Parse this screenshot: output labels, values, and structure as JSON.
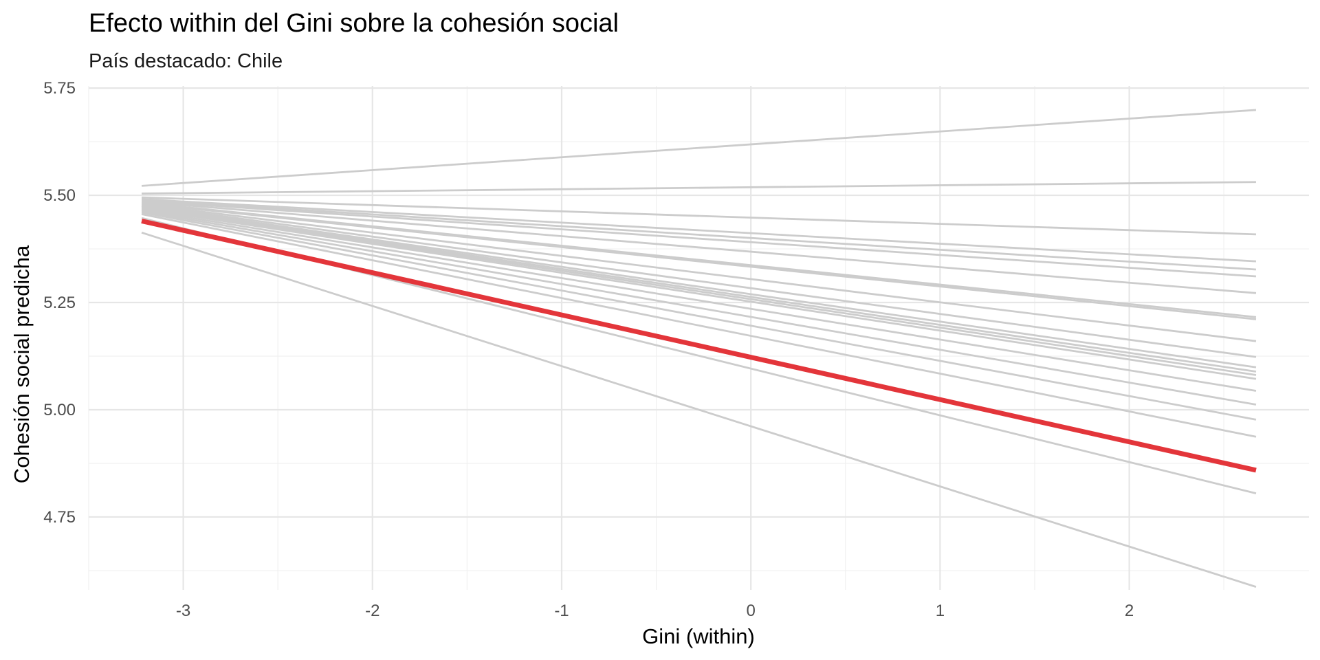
{
  "chart_data": {
    "type": "line",
    "title": "Efecto within del Gini sobre la cohesión social",
    "subtitle": "País destacado: Chile",
    "xlabel": "Gini (within)",
    "ylabel": "Cohesión social predicha",
    "xlim": [
      -3.5,
      2.95
    ],
    "ylim": [
      4.58,
      5.755
    ],
    "x_ticks": [
      -3,
      -2,
      -1,
      0,
      1,
      2
    ],
    "x_tick_labels": [
      "-3",
      "-2",
      "-1",
      "0",
      "1",
      "2"
    ],
    "y_ticks": [
      4.75,
      5.0,
      5.25,
      5.5,
      5.75
    ],
    "y_tick_labels": [
      "4.75",
      "5.00",
      "5.25",
      "5.50",
      "5.75"
    ],
    "grid": true,
    "x_range": [
      -3.22,
      2.67
    ],
    "highlight_color": "#e3353a",
    "background_color": "#cccccc",
    "series": [
      {
        "highlight": false,
        "values": [
          5.522,
          5.699
        ]
      },
      {
        "highlight": false,
        "values": [
          5.504,
          5.531
        ]
      },
      {
        "highlight": false,
        "values": [
          5.495,
          5.409
        ]
      },
      {
        "highlight": false,
        "values": [
          5.491,
          5.346
        ]
      },
      {
        "highlight": false,
        "values": [
          5.489,
          5.327
        ]
      },
      {
        "highlight": false,
        "values": [
          5.487,
          5.311
        ]
      },
      {
        "highlight": false,
        "values": [
          5.485,
          5.272
        ]
      },
      {
        "highlight": false,
        "values": [
          5.483,
          5.216
        ]
      },
      {
        "highlight": false,
        "values": [
          5.481,
          5.211
        ]
      },
      {
        "highlight": false,
        "values": [
          5.479,
          5.16
        ]
      },
      {
        "highlight": false,
        "values": [
          5.477,
          5.123
        ]
      },
      {
        "highlight": false,
        "values": [
          5.475,
          5.099
        ]
      },
      {
        "highlight": false,
        "values": [
          5.473,
          5.089
        ]
      },
      {
        "highlight": false,
        "values": [
          5.471,
          5.081
        ]
      },
      {
        "highlight": false,
        "values": [
          5.469,
          5.072
        ]
      },
      {
        "highlight": false,
        "values": [
          5.466,
          5.044
        ]
      },
      {
        "highlight": false,
        "values": [
          5.463,
          5.012
        ]
      },
      {
        "highlight": false,
        "values": [
          5.46,
          4.977
        ]
      },
      {
        "highlight": false,
        "values": [
          5.456,
          4.937
        ]
      },
      {
        "highlight": false,
        "values": [
          5.447,
          4.805
        ]
      },
      {
        "highlight": false,
        "values": [
          5.413,
          4.587
        ]
      },
      {
        "name": "Chile",
        "highlight": true,
        "values": [
          5.44,
          4.859
        ]
      }
    ]
  }
}
